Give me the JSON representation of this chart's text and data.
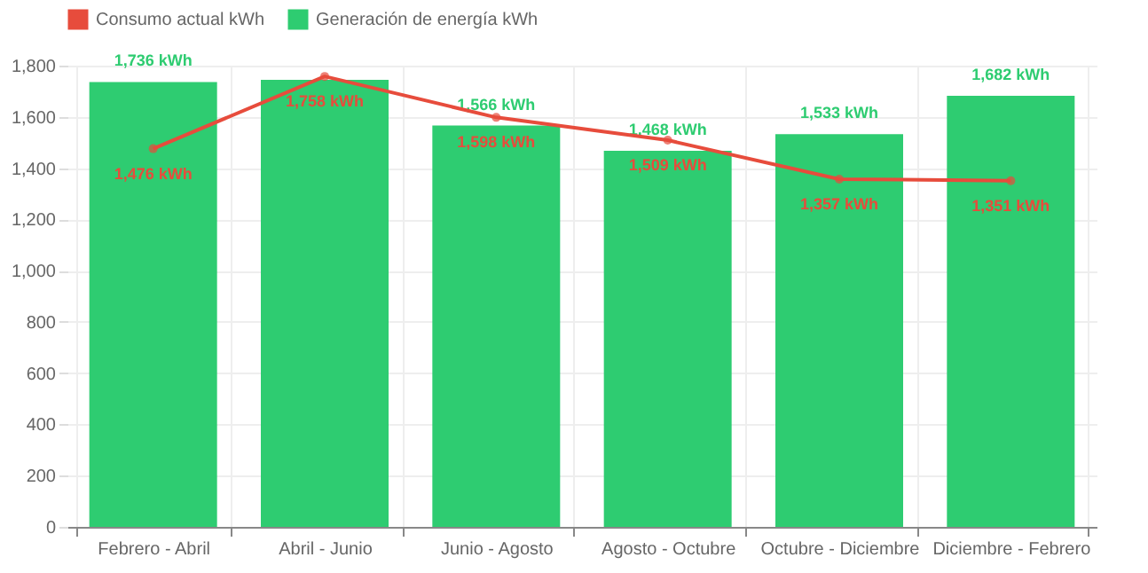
{
  "chart_data": {
    "type": "bar",
    "categories": [
      "Febrero - Abril",
      "Abril - Junio",
      "Junio - Agosto",
      "Agosto - Octubre",
      "Octubre - Diciembre",
      "Diciembre - Febrero"
    ],
    "series": [
      {
        "name": "Consumo actual kWh",
        "type": "line",
        "color": "#e74c3c",
        "values": [
          1476,
          1758,
          1598,
          1509,
          1357,
          1351
        ],
        "value_labels": [
          "1,476 kWh",
          "1,758 kWh",
          "1,598 kWh",
          "1,509 kWh",
          "1,357 kWh",
          "1,351 kWh"
        ]
      },
      {
        "name": "Generación de energía kWh",
        "type": "bar",
        "color": "#2ecc71",
        "values": [
          1736,
          1745,
          1566,
          1468,
          1533,
          1682
        ],
        "value_labels": [
          "1,736 kWh",
          null,
          "1,566 kWh",
          "1,468 kWh",
          "1,533 kWh",
          "1,682 kWh"
        ]
      }
    ],
    "ylim": [
      0,
      1800
    ],
    "yticks": [
      0,
      200,
      400,
      600,
      800,
      {
        "value": 1000,
        "label": "1,000"
      },
      {
        "value": 1200,
        "label": "1,200"
      },
      {
        "value": 1400,
        "label": "1,400"
      },
      {
        "value": 1600,
        "label": "1,600"
      },
      {
        "value": 1800,
        "label": "1,800"
      }
    ],
    "grid": true,
    "legend": "top",
    "marker": "circle"
  }
}
